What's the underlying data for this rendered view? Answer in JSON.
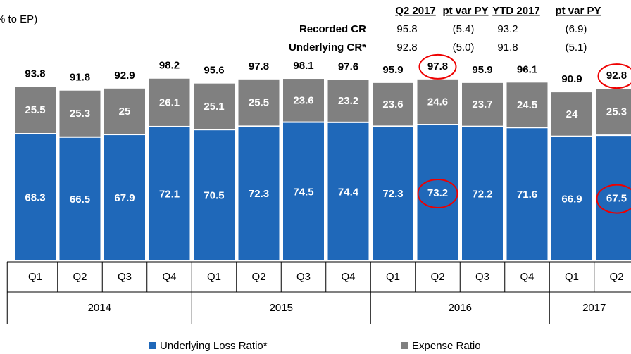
{
  "chart_data": {
    "type": "stacked_bar",
    "title": "% to EP)",
    "groups": [
      {
        "name": "2014",
        "categories": [
          "Q1",
          "Q2",
          "Q3",
          "Q4"
        ]
      },
      {
        "name": "2015",
        "categories": [
          "Q1",
          "Q2",
          "Q3",
          "Q4"
        ]
      },
      {
        "name": "2016",
        "categories": [
          "Q1",
          "Q2",
          "Q3",
          "Q4"
        ]
      },
      {
        "name": "2017",
        "categories": [
          "Q1",
          "Q2"
        ]
      }
    ],
    "series": [
      {
        "name": "Underlying Loss Ratio*",
        "color": "#1f68b9",
        "values": [
          68.3,
          66.5,
          67.9,
          72.1,
          70.5,
          72.3,
          74.5,
          74.4,
          72.3,
          73.2,
          72.2,
          71.6,
          66.9,
          67.5
        ]
      },
      {
        "name": "Expense Ratio",
        "color": "#808080",
        "values": [
          25.5,
          25.3,
          25.0,
          26.1,
          25.1,
          25.5,
          23.6,
          23.2,
          23.6,
          24.6,
          23.7,
          24.5,
          24.0,
          25.3
        ]
      }
    ],
    "totals": [
      93.8,
      91.8,
      92.9,
      98.2,
      95.6,
      97.8,
      98.1,
      97.6,
      95.9,
      97.8,
      95.9,
      96.1,
      90.9,
      92.8
    ],
    "table": {
      "headers": [
        "Q2 2017",
        "pt var PY",
        "YTD 2017",
        "pt var PY"
      ],
      "rows": [
        [
          "Recorded CR",
          "95.8",
          "(5.4)",
          "93.2",
          "(6.9)"
        ],
        [
          "Underlying CR*",
          "92.8",
          "(5.0)",
          "91.8",
          "(5.1)"
        ]
      ]
    }
  }
}
